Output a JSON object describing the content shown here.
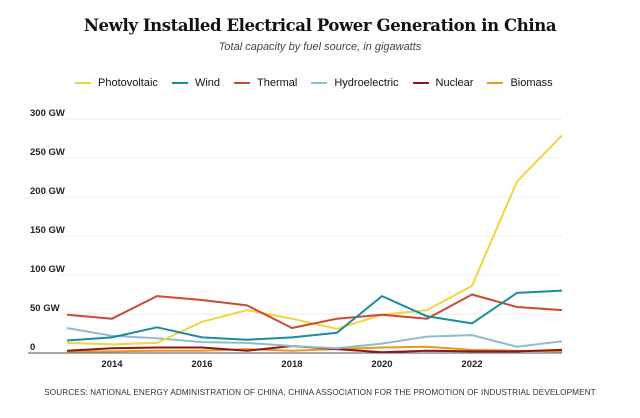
{
  "chart_data": {
    "type": "line",
    "title": "Newly Installed Electrical Power Generation in China",
    "subtitle": "Total capacity by fuel source, in gigawatts",
    "source": "SOURCES: NATIONAL ENERGY ADMINISTRATION OF CHINA, CHINA ASSOCIATION FOR THE PROMOTION OF INDUSTRIAL DEVELOPMENT",
    "x": [
      2013,
      2014,
      2015,
      2016,
      2017,
      2018,
      2019,
      2020,
      2021,
      2022,
      2023,
      2024
    ],
    "xticks": [
      "2014",
      "2016",
      "2018",
      "2020",
      "2022"
    ],
    "xtick_values": [
      2014,
      2016,
      2018,
      2020,
      2022
    ],
    "yticks": [
      "0",
      "50 GW",
      "100 GW",
      "150 GW",
      "200 GW",
      "250 GW",
      "300 GW"
    ],
    "ytick_values": [
      0,
      50,
      100,
      150,
      200,
      250,
      300
    ],
    "ylim": [
      0,
      300
    ],
    "xlim": [
      2013,
      2024
    ],
    "grid": true,
    "legend_position": "top",
    "series": [
      {
        "name": "Photovoltaic",
        "color": "#f0d53c",
        "values": [
          13,
          11,
          13,
          40,
          55,
          44,
          31,
          49,
          55,
          86,
          220,
          279
        ]
      },
      {
        "name": "Wind",
        "color": "#1a8c9e",
        "values": [
          16,
          20,
          33,
          20,
          17,
          20,
          26,
          73,
          47,
          38,
          77,
          80
        ]
      },
      {
        "name": "Thermal",
        "color": "#cc4a31",
        "values": [
          49,
          44,
          73,
          68,
          61,
          32,
          44,
          49,
          44,
          75,
          59,
          55
        ]
      },
      {
        "name": "Hydroelectric",
        "color": "#8fbbd0",
        "values": [
          32,
          22,
          19,
          14,
          13,
          9,
          6,
          12,
          21,
          23,
          8,
          15
        ]
      },
      {
        "name": "Nuclear",
        "color": "#8e1818",
        "values": [
          3,
          6,
          7,
          7,
          3,
          9,
          5,
          1,
          3,
          2,
          2,
          4
        ]
      },
      {
        "name": "Biomass",
        "color": "#e59a22",
        "values": [
          2,
          2,
          3,
          3,
          5,
          3,
          5,
          7,
          8,
          4,
          3,
          2
        ]
      }
    ]
  }
}
